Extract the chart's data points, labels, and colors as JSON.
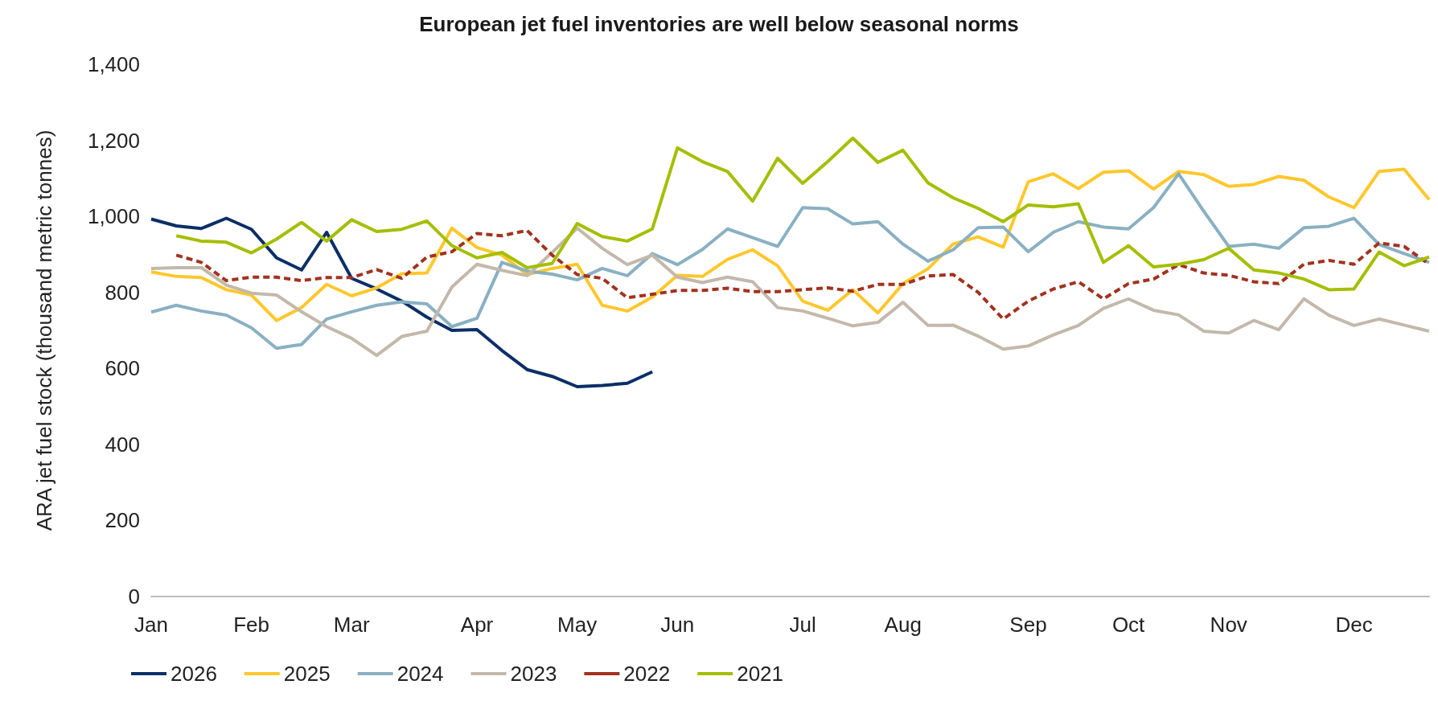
{
  "chart_data": {
    "type": "line",
    "title": "European jet fuel inventories are well below seasonal norms",
    "ylabel": "ARA jet fuel stock (thousand metric tonnes)",
    "categories": [
      "Jan",
      null,
      null,
      null,
      "Feb",
      null,
      null,
      null,
      "Mar",
      null,
      null,
      null,
      null,
      "Apr",
      null,
      null,
      null,
      "May",
      null,
      null,
      null,
      "Jun",
      null,
      null,
      null,
      null,
      "Jul",
      null,
      null,
      null,
      "Aug",
      null,
      null,
      null,
      null,
      "Sep",
      null,
      null,
      null,
      "Oct",
      null,
      null,
      null,
      "Nov",
      null,
      null,
      null,
      null,
      "Dec",
      null,
      null,
      null
    ],
    "ylim": [
      0,
      1400
    ],
    "yticks": [
      0,
      200,
      400,
      600,
      800,
      {
        "value": 1000,
        "label": "1,000"
      },
      {
        "value": 1200,
        "label": "1,200"
      },
      {
        "value": 1400,
        "label": "1,400"
      }
    ],
    "grid": false,
    "legend": "bottom left",
    "marker": "none",
    "line_style": "solid",
    "series": [
      {
        "name": "2026",
        "color": "#0b2f66",
        "values": [
          993,
          975,
          968,
          995,
          966,
          891,
          859,
          958,
          837,
          809,
          777,
          735,
          700,
          702,
          647,
          597,
          579,
          552,
          555,
          561,
          591,
          null,
          null,
          null,
          null,
          null,
          null,
          null,
          null,
          null,
          null,
          null,
          null,
          null,
          null,
          null,
          null,
          null,
          null,
          null,
          null,
          null,
          null,
          null,
          null,
          null,
          null,
          null,
          null,
          null,
          null,
          null
        ]
      },
      {
        "name": "2025",
        "color": "#ffc72c",
        "values": [
          854,
          842,
          839,
          807,
          793,
          726,
          760,
          821,
          791,
          812,
          849,
          851,
          969,
          918,
          898,
          847,
          863,
          874,
          766,
          751,
          788,
          845,
          842,
          887,
          912,
          870,
          777,
          753,
          807,
          746,
          823,
          862,
          927,
          946,
          919,
          1091,
          1112,
          1073,
          1116,
          1120,
          1072,
          1118,
          1110,
          1079,
          1084,
          1105,
          1095,
          1051,
          1023,
          1118,
          1124,
          1044
        ]
      },
      {
        "name": "2024",
        "color": "#8ab0c2",
        "values": [
          748,
          766,
          751,
          740,
          707,
          653,
          663,
          730,
          749,
          766,
          775,
          770,
          710,
          732,
          879,
          856,
          848,
          833,
          863,
          844,
          902,
          873,
          913,
          967,
          944,
          921,
          1023,
          1020,
          980,
          986,
          927,
          882,
          912,
          970,
          972,
          907,
          958,
          986,
          972,
          967,
          1023,
          1112,
          1014,
          921,
          927,
          916,
          970,
          974,
          995,
          926,
          902,
          879
        ]
      },
      {
        "name": "2023",
        "color": "#c3b8aa",
        "values": [
          863,
          865,
          865,
          819,
          798,
          793,
          749,
          710,
          679,
          634,
          684,
          698,
          814,
          874,
          858,
          844,
          905,
          969,
          916,
          873,
          898,
          840,
          826,
          840,
          828,
          760,
          751,
          732,
          712,
          721,
          774,
          713,
          714,
          685,
          651,
          659,
          688,
          713,
          758,
          783,
          753,
          741,
          698,
          693,
          726,
          702,
          783,
          740,
          713,
          730,
          714,
          698
        ]
      },
      {
        "name": "2022",
        "color": "#a2321f",
        "line_style": "dashed",
        "values": [
          null,
          898,
          879,
          831,
          840,
          840,
          831,
          839,
          839,
          860,
          837,
          893,
          907,
          955,
          949,
          963,
          898,
          847,
          837,
          786,
          795,
          805,
          805,
          811,
          802,
          802,
          807,
          812,
          803,
          821,
          821,
          843,
          847,
          800,
          730,
          777,
          809,
          828,
          783,
          823,
          835,
          873,
          851,
          845,
          828,
          823,
          874,
          884,
          874,
          930,
          921,
          874
        ]
      },
      {
        "name": "2021",
        "color": "#a5be00",
        "values": [
          null,
          949,
          935,
          932,
          904,
          940,
          984,
          935,
          991,
          960,
          966,
          988,
          923,
          891,
          905,
          865,
          876,
          981,
          947,
          935,
          967,
          1180,
          1144,
          1118,
          1040,
          1153,
          1087,
          1144,
          1206,
          1142,
          1174,
          1088,
          1049,
          1021,
          986,
          1030,
          1025,
          1033,
          879,
          923,
          867,
          874,
          886,
          916,
          859,
          851,
          835,
          807,
          809,
          906,
          870,
          893
        ]
      }
    ]
  }
}
